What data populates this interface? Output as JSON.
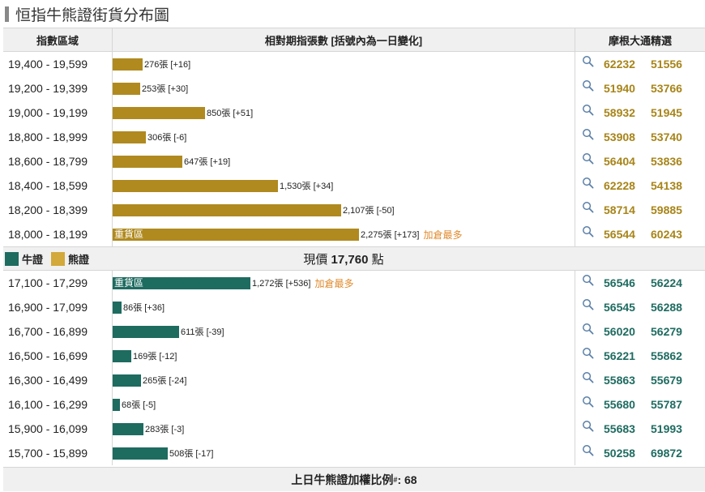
{
  "title": "恒指牛熊證街貨分布圖",
  "header": {
    "col_range": "指數區域",
    "col_qty": "相對期指張數 [括號內為一日變化]",
    "col_jpm": "摩根大通精選"
  },
  "colors": {
    "bear": "#b08a1f",
    "bull": "#1e6b60",
    "note": "#e08a2c"
  },
  "icons": {
    "search": "magnifier-icon"
  },
  "bear_rows": [
    {
      "range": "19,400 - 19,599",
      "qty": "276張 [+16]",
      "value": 276,
      "codes": [
        "62232",
        "51556"
      ]
    },
    {
      "range": "19,200 - 19,399",
      "qty": "253張 [+30]",
      "value": 253,
      "codes": [
        "51940",
        "53766"
      ]
    },
    {
      "range": "19,000 - 19,199",
      "qty": "850張 [+51]",
      "value": 850,
      "codes": [
        "58932",
        "51945"
      ]
    },
    {
      "range": "18,800 - 18,999",
      "qty": "306張 [-6]",
      "value": 306,
      "codes": [
        "53908",
        "53740"
      ]
    },
    {
      "range": "18,600 - 18,799",
      "qty": "647張 [+19]",
      "value": 647,
      "codes": [
        "56404",
        "53836"
      ]
    },
    {
      "range": "18,400 - 18,599",
      "qty": "1,530張 [+34]",
      "value": 1530,
      "codes": [
        "62228",
        "54138"
      ]
    },
    {
      "range": "18,200 - 18,399",
      "qty": "2,107張 [-50]",
      "value": 2107,
      "codes": [
        "58714",
        "59885"
      ]
    },
    {
      "range": "18,000 - 18,199",
      "qty": "2,275張 [+173]",
      "value": 2275,
      "codes": [
        "56544",
        "60243"
      ],
      "in_bar": "重貨區",
      "note": "加倉最多"
    }
  ],
  "middle": {
    "legend_bull": "牛證",
    "legend_bear": "熊證",
    "price_label": "現價",
    "price_value": "17,760",
    "price_unit": "點"
  },
  "bull_rows": [
    {
      "range": "17,100 - 17,299",
      "qty": "1,272張 [+536]",
      "value": 1272,
      "codes": [
        "56546",
        "56224"
      ],
      "in_bar": "重貨區",
      "note": "加倉最多"
    },
    {
      "range": "16,900 - 17,099",
      "qty": "86張 [+36]",
      "value": 86,
      "codes": [
        "56545",
        "56288"
      ]
    },
    {
      "range": "16,700 - 16,899",
      "qty": "611張 [-39]",
      "value": 611,
      "codes": [
        "56020",
        "56279"
      ]
    },
    {
      "range": "16,500 - 16,699",
      "qty": "169張 [-12]",
      "value": 169,
      "codes": [
        "56221",
        "55862"
      ]
    },
    {
      "range": "16,300 - 16,499",
      "qty": "265張 [-24]",
      "value": 265,
      "codes": [
        "55863",
        "55679"
      ]
    },
    {
      "range": "16,100 - 16,299",
      "qty": "68張 [-5]",
      "value": 68,
      "codes": [
        "55680",
        "55787"
      ]
    },
    {
      "range": "15,900 - 16,099",
      "qty": "283張 [-3]",
      "value": 283,
      "codes": [
        "55683",
        "51993"
      ]
    },
    {
      "range": "15,700 - 15,899",
      "qty": "508張 [-17]",
      "value": 508,
      "codes": [
        "50258",
        "69872"
      ]
    }
  ],
  "footer": {
    "label": "上日牛熊證加權比例",
    "mark": "#",
    "value": ": 68"
  }
}
